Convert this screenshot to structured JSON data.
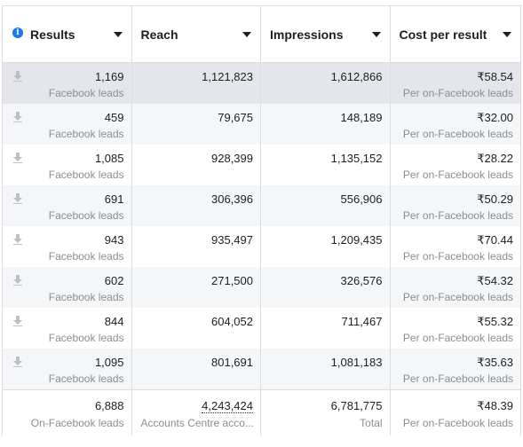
{
  "columns": [
    {
      "label": "Results",
      "icon": "info-icon"
    },
    {
      "label": "Reach"
    },
    {
      "label": "Impressions"
    },
    {
      "label": "Cost per result"
    }
  ],
  "rows": [
    {
      "results": "1,169",
      "results_sub": "Facebook leads",
      "reach": "1,121,823",
      "impressions": "1,612,866",
      "cost": "₹58.54",
      "cost_sub": "Per on-Facebook leads"
    },
    {
      "results": "459",
      "results_sub": "Facebook leads",
      "reach": "79,675",
      "impressions": "148,189",
      "cost": "₹32.00",
      "cost_sub": "Per on-Facebook leads"
    },
    {
      "results": "1,085",
      "results_sub": "Facebook leads",
      "reach": "928,399",
      "impressions": "1,135,152",
      "cost": "₹28.22",
      "cost_sub": "Per on-Facebook leads"
    },
    {
      "results": "691",
      "results_sub": "Facebook leads",
      "reach": "306,396",
      "impressions": "556,906",
      "cost": "₹50.29",
      "cost_sub": "Per on-Facebook leads"
    },
    {
      "results": "943",
      "results_sub": "Facebook leads",
      "reach": "935,497",
      "impressions": "1,209,435",
      "cost": "₹70.44",
      "cost_sub": "Per on-Facebook leads"
    },
    {
      "results": "602",
      "results_sub": "Facebook leads",
      "reach": "271,500",
      "impressions": "326,576",
      "cost": "₹54.32",
      "cost_sub": "Per on-Facebook leads"
    },
    {
      "results": "844",
      "results_sub": "Facebook leads",
      "reach": "604,052",
      "impressions": "711,467",
      "cost": "₹55.32",
      "cost_sub": "Per on-Facebook leads"
    },
    {
      "results": "1,095",
      "results_sub": "Facebook leads",
      "reach": "801,691",
      "impressions": "1,081,183",
      "cost": "₹35.63",
      "cost_sub": "Per on-Facebook leads"
    }
  ],
  "totals": {
    "results": "6,888",
    "results_sub": "On-Facebook leads",
    "reach": "4,243,424",
    "reach_sub": "Accounts Centre acco...",
    "impressions": "6,781,775",
    "impressions_sub": "Total",
    "cost": "₹48.39",
    "cost_sub": "Per on-Facebook leads"
  },
  "colors": {
    "accent": "#1877f2",
    "border": "#dadde1",
    "muted": "#8a8d91"
  }
}
